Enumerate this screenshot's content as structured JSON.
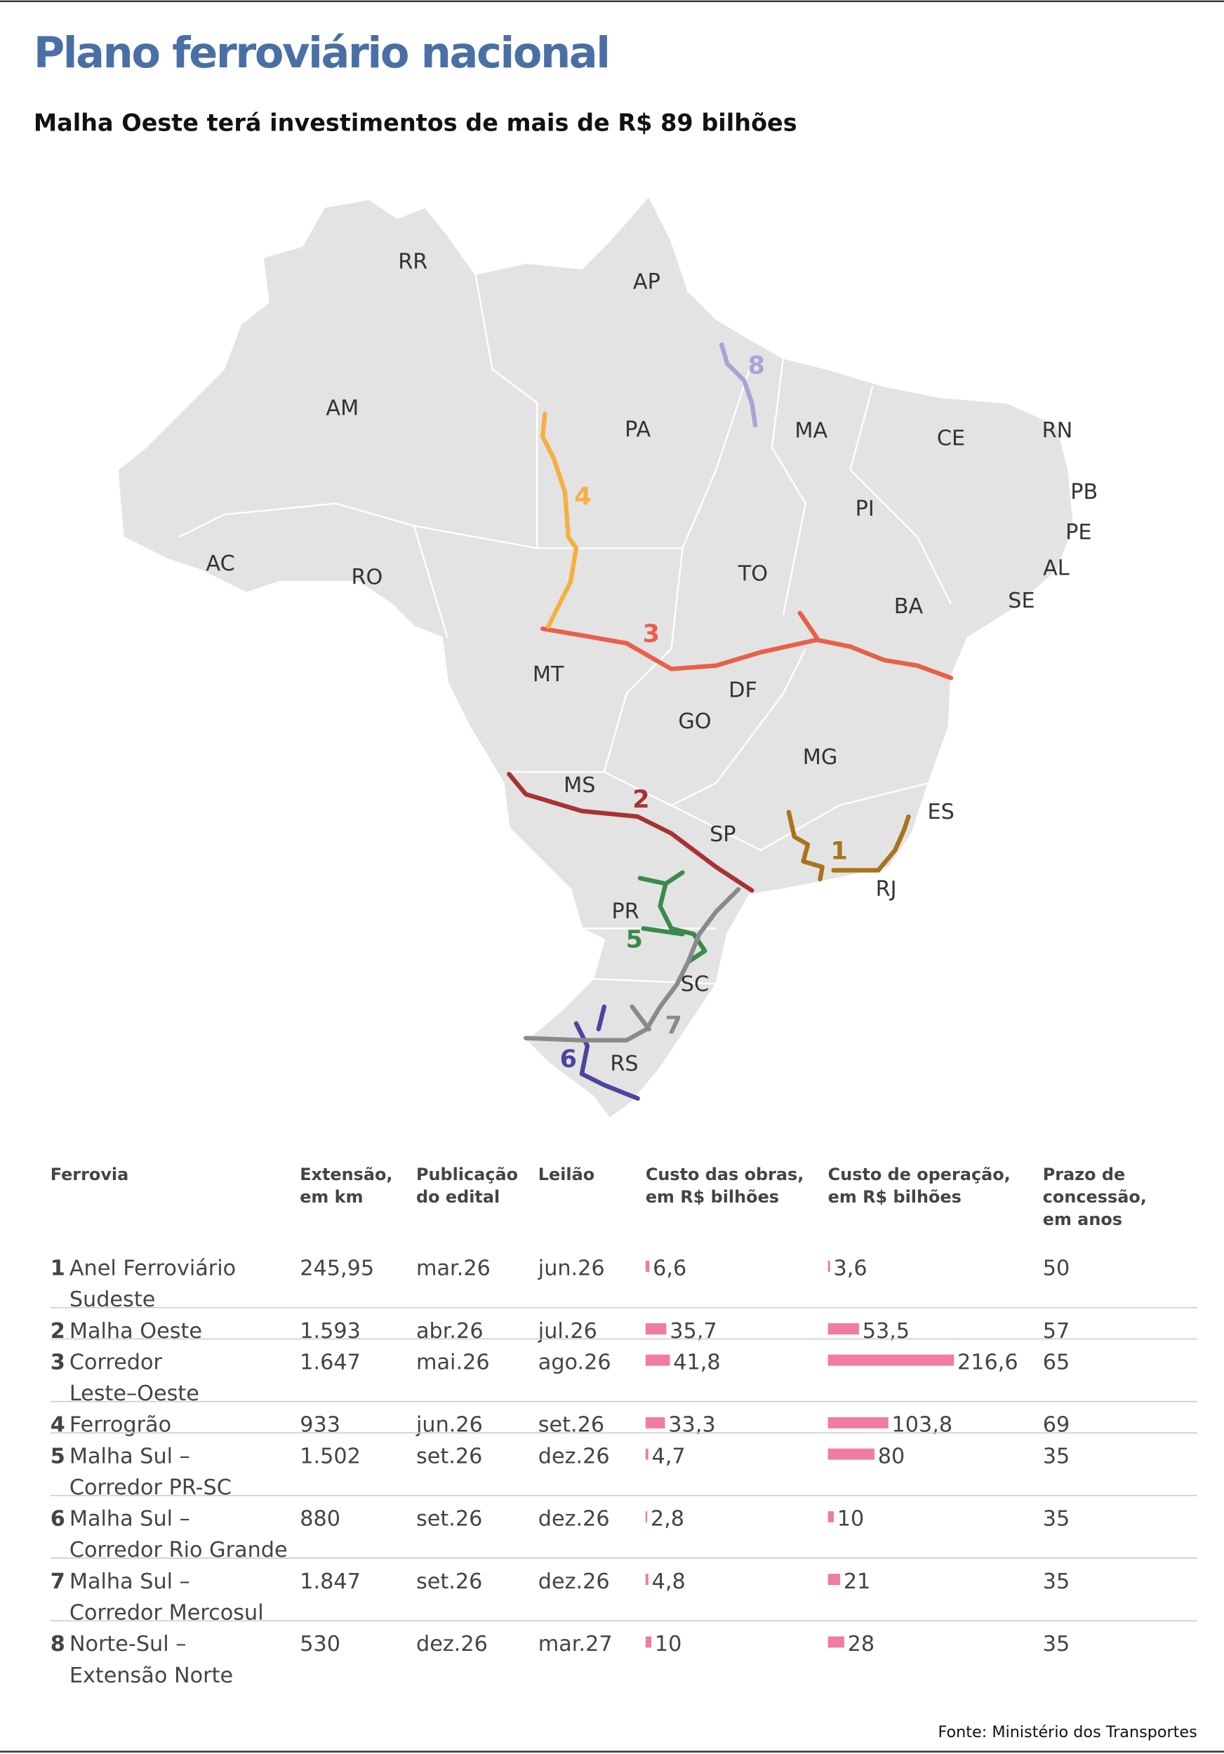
{
  "header": {
    "title": "Plano ferroviário nacional",
    "subtitle": "Malha Oeste terá investimentos de mais de R$ 89 bilhões"
  },
  "map": {
    "states": [
      "RR",
      "AP",
      "AM",
      "PA",
      "MA",
      "CE",
      "RN",
      "PB",
      "PE",
      "AL",
      "SE",
      "PI",
      "AC",
      "RO",
      "TO",
      "BA",
      "MT",
      "DF",
      "GO",
      "MG",
      "MS",
      "ES",
      "SP",
      "RJ",
      "PR",
      "SC",
      "RS"
    ]
  },
  "table": {
    "headers": [
      [
        "Ferrovia"
      ],
      [
        "Extensão,",
        "em km"
      ],
      [
        "Publicação",
        "do edital"
      ],
      [
        "Leilão"
      ],
      [
        "Custo das obras,",
        "em R$ bilhões"
      ],
      [
        "Custo de operação,",
        "em R$ bilhões"
      ],
      [
        "Prazo de",
        "concessão,",
        "em anos"
      ]
    ],
    "rows": [
      {
        "number": "1",
        "color": "#a8741c",
        "name": [
          "Anel Ferroviário",
          "Sudeste"
        ],
        "length_km": "245,95",
        "edital": "mar.26",
        "auction": "jun.26",
        "cost_works": 6.6,
        "cost_works_label": "6,6",
        "cost_operation": 3.6,
        "cost_operation_label": "3,6",
        "term": "50"
      },
      {
        "number": "2",
        "color": "#a83232",
        "name": [
          "Malha Oeste"
        ],
        "length_km": "1.593",
        "edital": "abr.26",
        "auction": "jul.26",
        "cost_works": 35.7,
        "cost_works_label": "35,7",
        "cost_operation": 53.5,
        "cost_operation_label": "53,5",
        "term": "57"
      },
      {
        "number": "3",
        "color": "#e8604a",
        "name": [
          "Corredor",
          "Leste–Oeste"
        ],
        "length_km": "1.647",
        "edital": "mai.26",
        "auction": "ago.26",
        "cost_works": 41.8,
        "cost_works_label": "41,8",
        "cost_operation": 216.6,
        "cost_operation_label": "216,6",
        "term": "65"
      },
      {
        "number": "4",
        "color": "#f5b041",
        "name": [
          "Ferrogrão"
        ],
        "length_km": "933",
        "edital": "jun.26",
        "auction": "set.26",
        "cost_works": 33.3,
        "cost_works_label": "33,3",
        "cost_operation": 103.8,
        "cost_operation_label": "103,8",
        "term": "69"
      },
      {
        "number": "5",
        "color": "#3a8a4a",
        "name": [
          "Malha Sul –",
          "Corredor PR-SC"
        ],
        "length_km": "1.502",
        "edital": "set.26",
        "auction": "dez.26",
        "cost_works": 4.7,
        "cost_works_label": "4,7",
        "cost_operation": 80,
        "cost_operation_label": "80",
        "term": "35"
      },
      {
        "number": "6",
        "color": "#4a45a0",
        "name": [
          "Malha Sul –",
          "Corredor Rio Grande"
        ],
        "length_km": "880",
        "edital": "set.26",
        "auction": "dez.26",
        "cost_works": 2.8,
        "cost_works_label": "2,8",
        "cost_operation": 10,
        "cost_operation_label": "10",
        "term": "35"
      },
      {
        "number": "7",
        "color": "#8a8a8a",
        "name": [
          "Malha Sul –",
          "Corredor Mercosul"
        ],
        "length_km": "1.847",
        "edital": "set.26",
        "auction": "dez.26",
        "cost_works": 4.8,
        "cost_works_label": "4,8",
        "cost_operation": 21,
        "cost_operation_label": "21",
        "term": "35"
      },
      {
        "number": "8",
        "color": "#a9a3d8",
        "name": [
          "Norte-Sul –",
          "Extensão Norte"
        ],
        "length_km": "530",
        "edital": "dez.26",
        "auction": "mar.27",
        "cost_works": 10,
        "cost_works_label": "10",
        "cost_operation": 28,
        "cost_operation_label": "28",
        "term": "35"
      }
    ],
    "bar_color": "#f07ca0"
  },
  "footer": {
    "source": "Fonte: Ministério dos Transportes"
  }
}
